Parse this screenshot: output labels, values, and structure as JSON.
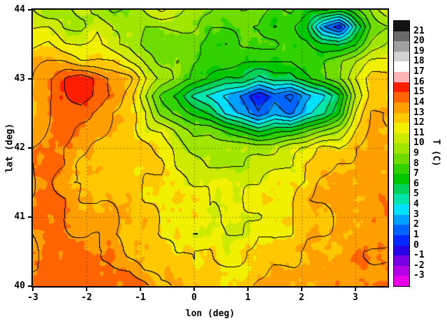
{
  "figure": {
    "background": "#ffffff",
    "frame_color": "#000000",
    "text_color": "#000000"
  },
  "chart_data": {
    "type": "heatmap",
    "title": "",
    "xlabel": "lon (deg)",
    "ylabel": "lat (deg)",
    "colorbar_label": "T (C)",
    "x_range": [
      -3,
      3.6
    ],
    "y_range": [
      40,
      44
    ],
    "x_ticks": [
      -3,
      -2,
      -1,
      0,
      1,
      2,
      3
    ],
    "y_ticks": [
      40,
      41,
      42,
      43,
      44
    ],
    "grid_lines": {
      "x": [
        -2,
        -1,
        0,
        1,
        2,
        3
      ],
      "y": [
        41,
        42,
        43
      ]
    },
    "contour_interval": 1,
    "colorbar": {
      "boundaries": [
        -3,
        -2,
        -1,
        0,
        1,
        2,
        3,
        4,
        5,
        6,
        7,
        8,
        9,
        10,
        11,
        12,
        13,
        14,
        15,
        16,
        17,
        18,
        19,
        20,
        21
      ],
      "colors": [
        "#e800e8",
        "#b400e6",
        "#7800e6",
        "#2800e6",
        "#0028ff",
        "#0064ff",
        "#00a0ff",
        "#00e1ff",
        "#00e6aa",
        "#00d25a",
        "#00c800",
        "#32d200",
        "#6edc00",
        "#a0e600",
        "#cdeb00",
        "#f0f000",
        "#ffc800",
        "#ffa000",
        "#ff6400",
        "#ff1e00",
        "#ffb4b4",
        "#ffffff",
        "#d2d2d2",
        "#a0a0a0",
        "#696969",
        "#141414"
      ]
    },
    "grid": {
      "lon_start": -3.0,
      "lon_step": 0.3,
      "n_lon": 23,
      "lat_start": 44.0,
      "lat_step": -0.25,
      "n_lat": 17,
      "values": [
        [
          10,
          9,
          10,
          11,
          10,
          9,
          9,
          10,
          11,
          10,
          9,
          9,
          8,
          9,
          9,
          8,
          8,
          7,
          7,
          7,
          8,
          9,
          11
        ],
        [
          11,
          11,
          10,
          10,
          11,
          10,
          10,
          9,
          9,
          9,
          9,
          8,
          8,
          8,
          8,
          7,
          7,
          6,
          2,
          0.5,
          5,
          8,
          9
        ],
        [
          12,
          12,
          11,
          11,
          11,
          10,
          10,
          9,
          9,
          8,
          8,
          8,
          7,
          8,
          8,
          8,
          7,
          7,
          6,
          6,
          7,
          9,
          10
        ],
        [
          13,
          13,
          13,
          12,
          12,
          12,
          11,
          10,
          9,
          9,
          8,
          8,
          8,
          7,
          7,
          7,
          7,
          8,
          8,
          9,
          10,
          11,
          11
        ],
        [
          13,
          14,
          15,
          15.5,
          15,
          14,
          13,
          11,
          10,
          9,
          8,
          7,
          6,
          6,
          5,
          6,
          6,
          7,
          8,
          9,
          11,
          12,
          12
        ],
        [
          13,
          14,
          15,
          15.5,
          15,
          14,
          12,
          10,
          8,
          7,
          5,
          4,
          3,
          2,
          0.5,
          2,
          1,
          3,
          4,
          6,
          10,
          12,
          12
        ],
        [
          13,
          14,
          15,
          15,
          14,
          13,
          12,
          11,
          9,
          8,
          7,
          6,
          4,
          3,
          1.5,
          3,
          2,
          4,
          5,
          7,
          11,
          13,
          13
        ],
        [
          13,
          14,
          15,
          14,
          14,
          13,
          12,
          11,
          11,
          10,
          9,
          9,
          8,
          7,
          6,
          7,
          7,
          8,
          9,
          10,
          12,
          13,
          13
        ],
        [
          14,
          14,
          14,
          14,
          13,
          13,
          12,
          12,
          11,
          11,
          10,
          10,
          10,
          10,
          10,
          10,
          11,
          11,
          12,
          12,
          13,
          13,
          13
        ],
        [
          14,
          14,
          14,
          13,
          13,
          13,
          12,
          12,
          12,
          11,
          11,
          10,
          10,
          10,
          11,
          11,
          11,
          12,
          12,
          13,
          13,
          13,
          13
        ],
        [
          14,
          14,
          13,
          13,
          13,
          13,
          13,
          12,
          12,
          12,
          11,
          11,
          11,
          11,
          11,
          12,
          12,
          12,
          13,
          13,
          13,
          13,
          13
        ],
        [
          14,
          14,
          14,
          13,
          13,
          13,
          13,
          12,
          12,
          12,
          12,
          11,
          11,
          11,
          12,
          12,
          12,
          13,
          13,
          13,
          13,
          13,
          14
        ],
        [
          14,
          14,
          14,
          14,
          13,
          13,
          13,
          13,
          12,
          12,
          12,
          11,
          11,
          11,
          11,
          12,
          12,
          13,
          13,
          13,
          13,
          14,
          14
        ],
        [
          14,
          14,
          14,
          14,
          14,
          13,
          13,
          13,
          12,
          12,
          11,
          11,
          11,
          11,
          12,
          12,
          12,
          13,
          13,
          13,
          13,
          14,
          14
        ],
        [
          14,
          14,
          14,
          14,
          14,
          14,
          13,
          13,
          13,
          12,
          12,
          12,
          11,
          12,
          12,
          12,
          13,
          13,
          13,
          13,
          14,
          14,
          14
        ],
        [
          14,
          14,
          14,
          14,
          14,
          14,
          14,
          13,
          13,
          13,
          12,
          12,
          12,
          12,
          12,
          13,
          13,
          13,
          13,
          14,
          14,
          14,
          14
        ],
        [
          15,
          14,
          14,
          14,
          14,
          14,
          14,
          14,
          13,
          13,
          13,
          12,
          12,
          12,
          13,
          13,
          13,
          13,
          14,
          14,
          14,
          14,
          14
        ]
      ]
    }
  }
}
